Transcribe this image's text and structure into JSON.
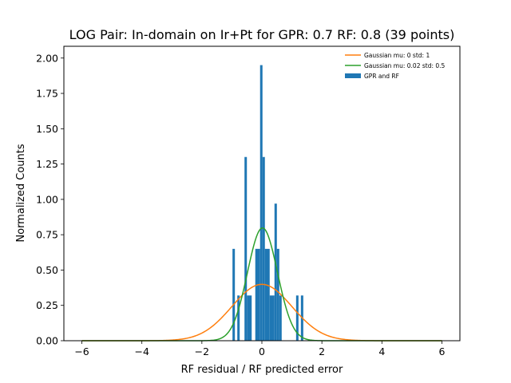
{
  "chart_data": {
    "type": "bar",
    "title": "LOG Pair: In-domain on Ir+Pt for GPR: 0.7 RF: 0.8 (39 points)",
    "xlabel": "RF residual / RF predicted error",
    "ylabel": "Normalized Counts",
    "xlim": [
      -6.6,
      6.6
    ],
    "ylim": [
      0,
      2.0833
    ],
    "xticks": [
      -6,
      -4,
      -2,
      0,
      2,
      4,
      6
    ],
    "xtick_labels": [
      "−6",
      "−4",
      "−2",
      "0",
      "2",
      "4",
      "6"
    ],
    "yticks": [
      0,
      0.25,
      0.5,
      0.75,
      1.0,
      1.25,
      1.5,
      1.75,
      2.0
    ],
    "ytick_labels": [
      "0.00",
      "0.25",
      "0.50",
      "0.75",
      "1.00",
      "1.25",
      "1.50",
      "1.75",
      "2.00"
    ],
    "grid": false,
    "legend_position": "top-right",
    "histogram": {
      "name": "GPR and RF",
      "color": "#1f77b4",
      "bins": [
        {
          "x0": -0.98,
          "x1": -0.9,
          "value": 0.65
        },
        {
          "x0": -0.82,
          "x1": -0.74,
          "value": 0.32
        },
        {
          "x0": -0.58,
          "x1": -0.5,
          "value": 1.3
        },
        {
          "x0": -0.5,
          "x1": -0.34,
          "value": 0.32
        },
        {
          "x0": -0.22,
          "x1": -0.06,
          "value": 0.65
        },
        {
          "x0": -0.06,
          "x1": 0.02,
          "value": 1.95
        },
        {
          "x0": 0.02,
          "x1": 0.1,
          "value": 1.3
        },
        {
          "x0": 0.1,
          "x1": 0.26,
          "value": 0.65
        },
        {
          "x0": 0.26,
          "x1": 0.42,
          "value": 0.32
        },
        {
          "x0": 0.42,
          "x1": 0.5,
          "value": 0.97
        },
        {
          "x0": 0.5,
          "x1": 0.58,
          "value": 0.65
        },
        {
          "x0": 0.58,
          "x1": 0.66,
          "value": 0.32
        },
        {
          "x0": 1.14,
          "x1": 1.22,
          "value": 0.32
        },
        {
          "x0": 1.3,
          "x1": 1.38,
          "value": 0.32
        }
      ]
    },
    "series": [
      {
        "name": "Gaussian mu: 0 std: 1",
        "type": "line",
        "mu": 0,
        "std": 1,
        "color": "#ff7f0e"
      },
      {
        "name": "Gaussian mu: 0.02 std: 0.5",
        "type": "line",
        "mu": 0.02,
        "std": 0.5,
        "color": "#2ca02c"
      }
    ],
    "curve_x_range": [
      -6,
      6
    ]
  }
}
